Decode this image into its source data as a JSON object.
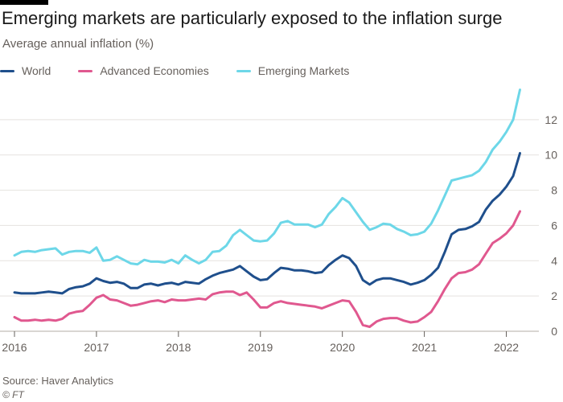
{
  "title": "Emerging markets are particularly exposed to the inflation surge",
  "subtitle": "Average annual inflation (%)",
  "source": "Source: Haver Analytics",
  "credit": "© FT",
  "colors": {
    "world": "#1f4f8c",
    "advanced": "#e0588f",
    "emerging": "#6dd7e8",
    "grid": "#e5e2df",
    "axis_text": "#66605c"
  },
  "chart_data": {
    "type": "line",
    "title": "Emerging markets are particularly exposed to the inflation surge",
    "ylabel": "Average annual inflation (%)",
    "xlabel": "",
    "ylim": [
      0,
      14
    ],
    "yticks": [
      0,
      2,
      4,
      6,
      8,
      10,
      12
    ],
    "xlim": [
      2016,
      2022.25
    ],
    "xticks": [
      "2016",
      "2017",
      "2018",
      "2019",
      "2020",
      "2021",
      "2022"
    ],
    "grid": true,
    "y_axis_side": "right",
    "legend_position": "top-left",
    "x": [
      2016.0,
      2016.083,
      2016.167,
      2016.25,
      2016.333,
      2016.417,
      2016.5,
      2016.583,
      2016.667,
      2016.75,
      2016.833,
      2016.917,
      2017.0,
      2017.083,
      2017.167,
      2017.25,
      2017.333,
      2017.417,
      2017.5,
      2017.583,
      2017.667,
      2017.75,
      2017.833,
      2017.917,
      2018.0,
      2018.083,
      2018.167,
      2018.25,
      2018.333,
      2018.417,
      2018.5,
      2018.583,
      2018.667,
      2018.75,
      2018.833,
      2018.917,
      2019.0,
      2019.083,
      2019.167,
      2019.25,
      2019.333,
      2019.417,
      2019.5,
      2019.583,
      2019.667,
      2019.75,
      2019.833,
      2019.917,
      2020.0,
      2020.083,
      2020.167,
      2020.25,
      2020.333,
      2020.417,
      2020.5,
      2020.583,
      2020.667,
      2020.75,
      2020.833,
      2020.917,
      2021.0,
      2021.083,
      2021.167,
      2021.25,
      2021.333,
      2021.417,
      2021.5,
      2021.583,
      2021.667,
      2021.75,
      2021.833,
      2021.917,
      2022.0,
      2022.083,
      2022.167
    ],
    "series": [
      {
        "name": "World",
        "key": "world",
        "values": [
          2.2,
          2.15,
          2.15,
          2.15,
          2.2,
          2.25,
          2.2,
          2.15,
          2.4,
          2.5,
          2.55,
          2.7,
          3.0,
          2.85,
          2.75,
          2.8,
          2.7,
          2.45,
          2.45,
          2.65,
          2.7,
          2.6,
          2.7,
          2.75,
          2.65,
          2.8,
          2.75,
          2.7,
          2.95,
          3.15,
          3.3,
          3.4,
          3.5,
          3.7,
          3.4,
          3.1,
          2.9,
          2.95,
          3.3,
          3.6,
          3.55,
          3.45,
          3.45,
          3.4,
          3.3,
          3.35,
          3.75,
          4.05,
          4.3,
          4.15,
          3.7,
          2.9,
          2.65,
          2.9,
          3.0,
          3.0,
          2.9,
          2.8,
          2.65,
          2.75,
          2.9,
          3.2,
          3.6,
          4.5,
          5.5,
          5.75,
          5.8,
          5.95,
          6.2,
          6.9,
          7.4,
          7.75,
          8.2,
          8.8,
          10.1
        ]
      },
      {
        "name": "Advanced Economies",
        "key": "advanced",
        "values": [
          0.8,
          0.6,
          0.6,
          0.65,
          0.6,
          0.65,
          0.6,
          0.7,
          1.0,
          1.1,
          1.15,
          1.5,
          1.9,
          2.05,
          1.8,
          1.75,
          1.6,
          1.45,
          1.5,
          1.6,
          1.7,
          1.75,
          1.65,
          1.8,
          1.75,
          1.75,
          1.8,
          1.85,
          1.8,
          2.1,
          2.2,
          2.25,
          2.25,
          2.05,
          2.2,
          1.8,
          1.35,
          1.35,
          1.6,
          1.7,
          1.6,
          1.55,
          1.5,
          1.45,
          1.4,
          1.3,
          1.45,
          1.6,
          1.75,
          1.7,
          1.1,
          0.35,
          0.25,
          0.55,
          0.7,
          0.75,
          0.75,
          0.6,
          0.5,
          0.55,
          0.8,
          1.1,
          1.7,
          2.4,
          3.0,
          3.3,
          3.35,
          3.5,
          3.8,
          4.4,
          5.0,
          5.25,
          5.55,
          6.0,
          6.8
        ]
      },
      {
        "name": "Emerging Markets",
        "key": "emerging",
        "values": [
          4.3,
          4.5,
          4.55,
          4.5,
          4.6,
          4.65,
          4.7,
          4.35,
          4.5,
          4.55,
          4.55,
          4.45,
          4.75,
          4.0,
          4.05,
          4.25,
          4.05,
          3.85,
          3.8,
          4.05,
          3.95,
          3.95,
          3.9,
          4.05,
          3.85,
          4.3,
          4.05,
          3.85,
          4.05,
          4.5,
          4.55,
          4.85,
          5.45,
          5.75,
          5.45,
          5.15,
          5.1,
          5.15,
          5.55,
          6.15,
          6.25,
          6.05,
          6.05,
          6.05,
          5.9,
          6.05,
          6.65,
          7.05,
          7.55,
          7.3,
          6.75,
          6.2,
          5.75,
          5.9,
          6.1,
          6.05,
          5.8,
          5.65,
          5.45,
          5.5,
          5.65,
          6.1,
          6.85,
          7.7,
          8.55,
          8.65,
          8.75,
          8.85,
          9.1,
          9.6,
          10.3,
          10.75,
          11.3,
          12.0,
          13.7
        ]
      }
    ]
  }
}
